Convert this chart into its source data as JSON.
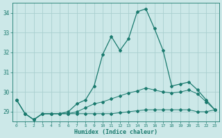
{
  "xlabel": "Humidex (Indice chaleur)",
  "bg_color": "#cce8e8",
  "grid_color": "#aacfcf",
  "line_color": "#1a7a6e",
  "x_values": [
    0,
    1,
    2,
    3,
    4,
    5,
    6,
    7,
    8,
    9,
    10,
    11,
    12,
    13,
    14,
    15,
    16,
    17,
    18,
    19,
    20,
    21,
    22,
    23
  ],
  "y_main": [
    29.6,
    28.9,
    28.6,
    28.9,
    28.9,
    28.9,
    29.0,
    29.4,
    29.6,
    30.3,
    31.9,
    32.8,
    32.1,
    32.7,
    34.05,
    34.2,
    33.2,
    32.1,
    30.3,
    30.4,
    30.5,
    30.1,
    29.6,
    29.1
  ],
  "y_mid": [
    29.6,
    28.9,
    28.6,
    28.9,
    28.9,
    28.9,
    28.9,
    29.0,
    29.2,
    29.4,
    29.5,
    29.65,
    29.8,
    29.95,
    30.05,
    30.2,
    30.1,
    30.0,
    29.95,
    30.0,
    30.1,
    29.9,
    29.5,
    29.1
  ],
  "y_bot": [
    29.6,
    28.9,
    28.6,
    28.9,
    28.9,
    28.9,
    28.9,
    28.9,
    28.9,
    28.9,
    28.9,
    28.9,
    28.95,
    29.0,
    29.05,
    29.1,
    29.1,
    29.1,
    29.1,
    29.1,
    29.1,
    29.0,
    29.0,
    29.1
  ],
  "ylim": [
    28.5,
    34.5
  ],
  "yticks": [
    29,
    30,
    31,
    32,
    33,
    34
  ],
  "xlim": [
    -0.5,
    23.5
  ]
}
